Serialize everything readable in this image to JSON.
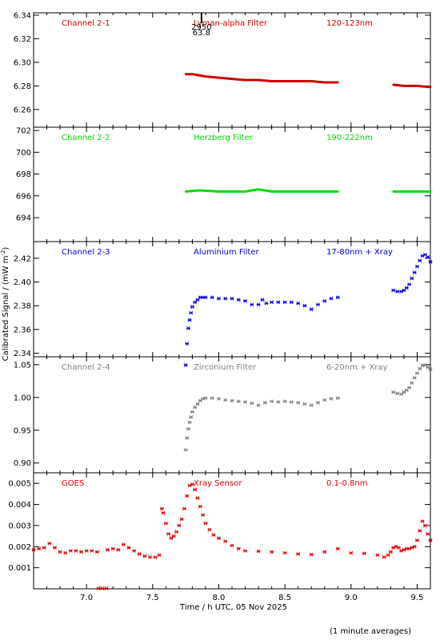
{
  "figure": {
    "ylabel": "Calibrated Signal / (mW m",
    "ylabel_sup": "-2",
    "ylabel_end": ")",
    "xlabel": "Time / h UTC, 05 Nov 2025",
    "footnote": "(1 minute averages)",
    "marker": {
      "line1": "2950",
      "line2": "63.8",
      "x": 7.555
    }
  },
  "chart_data": [
    {
      "type": "line",
      "channel": "Channel 2-1",
      "filter": "Lyman-alpha Filter",
      "band": "120-123nm",
      "color": "#cc0000",
      "xlim": [
        6.6,
        9.6
      ],
      "ylim": [
        6.245,
        6.342
      ],
      "yticks": [
        6.26,
        6.28,
        6.3,
        6.32,
        6.34
      ],
      "ytick_labels": [
        "6.26",
        "6.28",
        "6.30",
        "6.32",
        "6.34"
      ],
      "series": [
        {
          "x": [
            7.75,
            7.8,
            7.85,
            7.9,
            8.0,
            8.1,
            8.2,
            8.3,
            8.4,
            8.5,
            8.6,
            8.7,
            8.8,
            8.9
          ],
          "y": [
            6.29,
            6.29,
            6.289,
            6.288,
            6.287,
            6.286,
            6.285,
            6.285,
            6.284,
            6.284,
            6.284,
            6.284,
            6.283,
            6.283
          ]
        },
        {
          "x": [
            9.32,
            9.4,
            9.5,
            9.6
          ],
          "y": [
            6.281,
            6.28,
            6.28,
            6.279
          ]
        }
      ]
    },
    {
      "type": "line",
      "channel": "Channel 2-2",
      "filter": "Herzberg Filter",
      "band": "190-222nm",
      "color": "#00dd00",
      "xlim": [
        6.6,
        9.6
      ],
      "ylim": [
        691.8,
        702.3
      ],
      "yticks": [
        694,
        696,
        698,
        700,
        702
      ],
      "ytick_labels": [
        "694",
        "696",
        "698",
        "700",
        "702"
      ],
      "series": [
        {
          "x": [
            7.75,
            7.85,
            8.0,
            8.1,
            8.2,
            8.3,
            8.4,
            8.5,
            8.6,
            8.7,
            8.8,
            8.9
          ],
          "y": [
            696.4,
            696.5,
            696.4,
            696.4,
            696.4,
            696.6,
            696.4,
            696.4,
            696.4,
            696.4,
            696.4,
            696.4
          ]
        },
        {
          "x": [
            9.32,
            9.4,
            9.5,
            9.6
          ],
          "y": [
            696.4,
            696.4,
            696.4,
            696.4
          ]
        }
      ]
    },
    {
      "type": "scatter",
      "channel": "Channel 2-3",
      "filter": "Aluminium Filter",
      "band": "17-80nm + Xray",
      "color": "#0000dd",
      "xlim": [
        6.6,
        9.6
      ],
      "ylim": [
        2.337,
        2.434
      ],
      "yticks": [
        2.34,
        2.36,
        2.38,
        2.4,
        2.42
      ],
      "ytick_labels": [
        "2.34",
        "2.36",
        "2.38",
        "2.40",
        "2.42"
      ],
      "series": [
        {
          "x": [
            7.75,
            7.76,
            7.77,
            7.78,
            7.79,
            7.8,
            7.82,
            7.84,
            7.86,
            7.88,
            7.9,
            7.95,
            8.0,
            8.05,
            8.1,
            8.15,
            8.2,
            8.25,
            8.3,
            8.33,
            8.36,
            8.4,
            8.45,
            8.5,
            8.55,
            8.6,
            8.65,
            8.7,
            8.75,
            8.8,
            8.85,
            8.9
          ],
          "y": [
            2.33,
            2.348,
            2.361,
            2.368,
            2.374,
            2.379,
            2.383,
            2.385,
            2.387,
            2.387,
            2.387,
            2.387,
            2.386,
            2.386,
            2.386,
            2.385,
            2.384,
            2.381,
            2.381,
            2.385,
            2.382,
            2.383,
            2.383,
            2.383,
            2.383,
            2.382,
            2.38,
            2.377,
            2.381,
            2.384,
            2.386,
            2.387
          ]
        },
        {
          "x": [
            9.32,
            9.35,
            9.38,
            9.4,
            9.42,
            9.44,
            9.46,
            9.48,
            9.5,
            9.52,
            9.54,
            9.56,
            9.58,
            9.6
          ],
          "y": [
            2.393,
            2.392,
            2.392,
            2.393,
            2.395,
            2.398,
            2.403,
            2.408,
            2.413,
            2.418,
            2.422,
            2.423,
            2.421,
            2.417
          ]
        }
      ]
    },
    {
      "type": "scatter",
      "channel": "Channel 2-4",
      "filter": "Zirconium Filter",
      "band": "6-20nm + Xray",
      "color": "#808080",
      "xlim": [
        6.6,
        9.6
      ],
      "ylim": [
        0.885,
        1.062
      ],
      "yticks": [
        0.9,
        0.95,
        1.0,
        1.05
      ],
      "ytick_labels": [
        "0.90",
        "0.95",
        "1.00",
        "1.05"
      ],
      "series": [
        {
          "x": [
            7.75,
            7.76,
            7.77,
            7.78,
            7.79,
            7.8,
            7.82,
            7.84,
            7.86,
            7.88,
            7.9,
            7.95,
            8.0,
            8.05,
            8.1,
            8.15,
            8.2,
            8.25,
            8.3,
            8.35,
            8.4,
            8.45,
            8.5,
            8.55,
            8.6,
            8.65,
            8.7,
            8.75,
            8.8,
            8.85,
            8.9
          ],
          "y": [
            0.92,
            0.938,
            0.952,
            0.962,
            0.97,
            0.978,
            0.985,
            0.99,
            0.995,
            0.998,
            0.999,
            0.999,
            0.998,
            0.996,
            0.995,
            0.994,
            0.993,
            0.991,
            0.988,
            0.992,
            0.994,
            0.993,
            0.994,
            0.993,
            0.992,
            0.99,
            0.988,
            0.992,
            0.996,
            0.998,
            0.999
          ]
        },
        {
          "x": [
            9.32,
            9.35,
            9.38,
            9.4,
            9.42,
            9.44,
            9.46,
            9.48,
            9.5,
            9.52,
            9.54,
            9.56,
            9.58,
            9.6
          ],
          "y": [
            1.008,
            1.006,
            1.005,
            1.008,
            1.011,
            1.015,
            1.022,
            1.03,
            1.037,
            1.044,
            1.049,
            1.049,
            1.046,
            1.043
          ]
        }
      ]
    },
    {
      "type": "scatter",
      "channel": "GOES",
      "filter": "Xray Sensor",
      "band": "0.1-0.8nm",
      "color": "#dd0000",
      "xlim": [
        6.6,
        9.6
      ],
      "ylim": [
        0.0,
        0.0055
      ],
      "yticks": [
        0.001,
        0.002,
        0.003,
        0.004,
        0.005
      ],
      "ytick_labels": [
        "0.001",
        "0.002",
        "0.003",
        "0.004",
        "0.005"
      ],
      "series": [
        {
          "x": [
            6.6,
            6.64,
            6.68,
            6.72,
            6.76,
            6.8,
            6.84,
            6.88,
            6.92,
            6.96,
            7.0,
            7.04,
            7.08
          ],
          "y": [
            0.00185,
            0.0019,
            0.00195,
            0.00215,
            0.00195,
            0.00175,
            0.0017,
            0.0018,
            0.0018,
            0.00175,
            0.0018,
            0.0018,
            0.00175
          ]
        },
        {
          "x": [
            7.09,
            7.12,
            7.15
          ],
          "y": [
            2e-05,
            2e-05,
            2e-05
          ]
        },
        {
          "x": [
            7.16,
            7.2,
            7.24,
            7.28,
            7.32,
            7.36,
            7.4,
            7.44,
            7.48,
            7.52,
            7.55
          ],
          "y": [
            0.00185,
            0.0019,
            0.00185,
            0.0021,
            0.00195,
            0.0018,
            0.00165,
            0.00155,
            0.0015,
            0.0015,
            0.0016
          ]
        },
        {
          "x": [
            7.57,
            7.58,
            7.6,
            7.62,
            7.64,
            7.66,
            7.68,
            7.7,
            7.72,
            7.74,
            7.76,
            7.78,
            7.8,
            7.82,
            7.84,
            7.86,
            7.88,
            7.9,
            7.93,
            7.96,
            8.0,
            8.05,
            8.1,
            8.15,
            8.2,
            8.3,
            8.4,
            8.5,
            8.6,
            8.7,
            8.8,
            8.9,
            9.0,
            9.1,
            9.2,
            9.25
          ],
          "y": [
            0.0038,
            0.0036,
            0.0031,
            0.0026,
            0.0024,
            0.0025,
            0.0027,
            0.003,
            0.0033,
            0.0038,
            0.0044,
            0.0049,
            0.00495,
            0.0047,
            0.0043,
            0.0039,
            0.0035,
            0.0031,
            0.0028,
            0.00255,
            0.0024,
            0.00225,
            0.00205,
            0.0019,
            0.0018,
            0.00178,
            0.00175,
            0.0017,
            0.00165,
            0.00162,
            0.00175,
            0.0019,
            0.0017,
            0.00168,
            0.0016,
            0.0015
          ]
        },
        {
          "x": [
            9.28,
            9.3,
            9.32,
            9.34,
            9.36,
            9.38,
            9.4,
            9.42,
            9.44,
            9.46,
            9.48,
            9.5,
            9.52,
            9.54,
            9.56,
            9.58,
            9.6
          ],
          "y": [
            0.0016,
            0.00175,
            0.00195,
            0.002,
            0.00195,
            0.0018,
            0.00185,
            0.0019,
            0.0019,
            0.00195,
            0.002,
            0.0023,
            0.00275,
            0.0032,
            0.003,
            0.0026,
            0.0023
          ]
        }
      ]
    }
  ],
  "xaxis": {
    "ticks": [
      7.0,
      7.5,
      8.0,
      8.5,
      9.0,
      9.5
    ],
    "tick_labels": [
      "7.0",
      "7.5",
      "8.0",
      "8.5",
      "9.0",
      "9.5"
    ]
  }
}
